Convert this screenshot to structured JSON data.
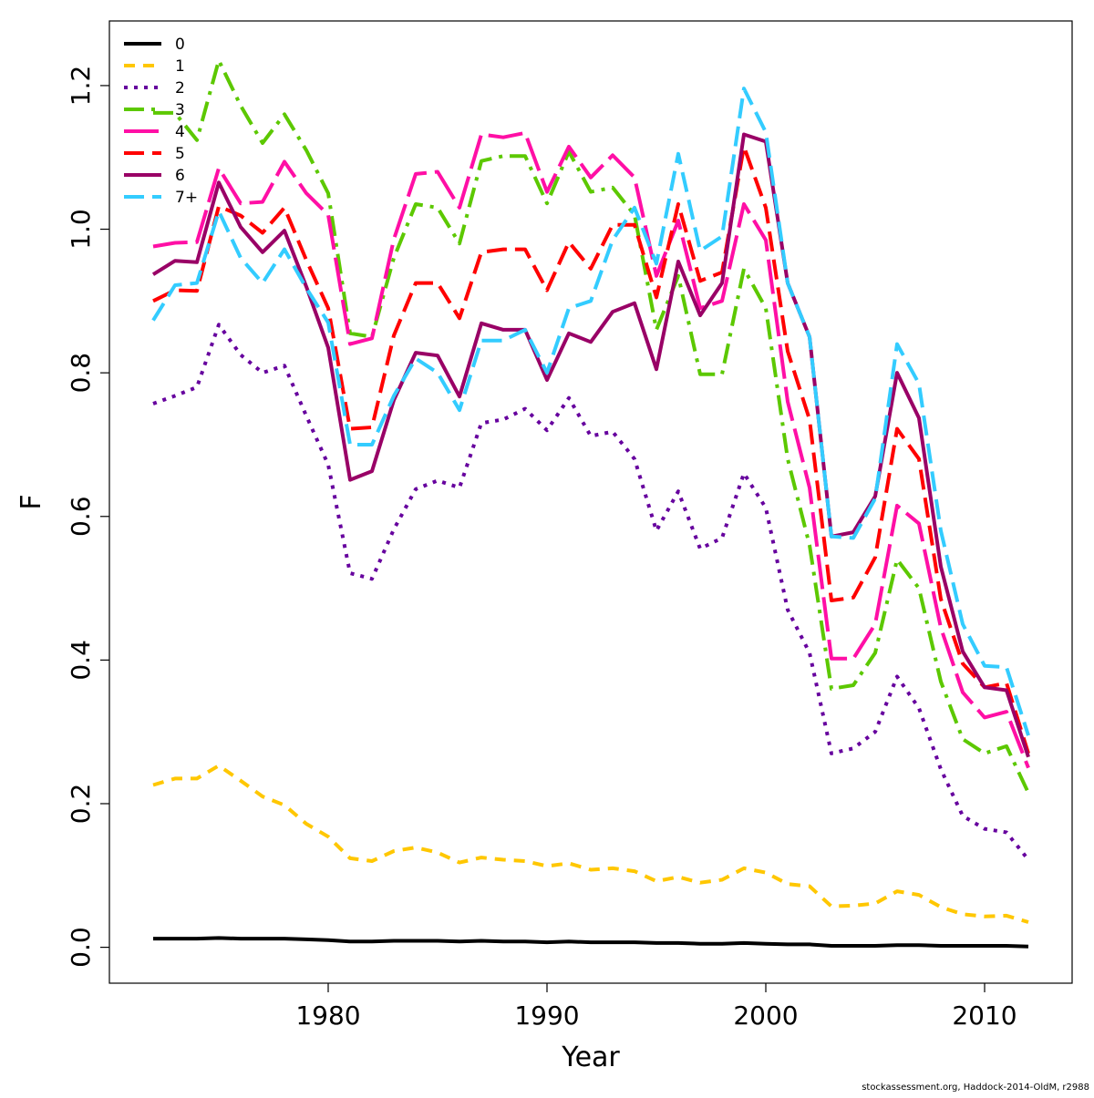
{
  "chart_data": {
    "type": "line",
    "title": "",
    "xlabel": "Year",
    "ylabel": "F",
    "xlim": [
      1970,
      2014
    ],
    "ylim": [
      -0.05,
      1.29
    ],
    "x_ticks": [
      1980,
      1990,
      2000,
      2010
    ],
    "y_ticks": [
      0.0,
      0.2,
      0.4,
      0.6,
      0.8,
      1.0,
      1.2
    ],
    "y_tick_labels": [
      "0.0",
      "0.2",
      "0.4",
      "0.6",
      "0.8",
      "1.0",
      "1.2"
    ],
    "legend_position": "top-left",
    "grid": false,
    "x": [
      1972,
      1973,
      1974,
      1975,
      1976,
      1977,
      1978,
      1979,
      1980,
      1981,
      1982,
      1983,
      1984,
      1985,
      1986,
      1987,
      1988,
      1989,
      1990,
      1991,
      1992,
      1993,
      1994,
      1995,
      1996,
      1997,
      1998,
      1999,
      2000,
      2001,
      2002,
      2003,
      2004,
      2005,
      2006,
      2007,
      2008,
      2009,
      2010,
      2011,
      2012
    ],
    "series": [
      {
        "name": "0",
        "color": "#000000",
        "dash": "",
        "values": [
          0.012,
          0.012,
          0.012,
          0.013,
          0.012,
          0.012,
          0.012,
          0.011,
          0.01,
          0.008,
          0.008,
          0.009,
          0.009,
          0.009,
          0.008,
          0.009,
          0.008,
          0.008,
          0.007,
          0.008,
          0.007,
          0.007,
          0.007,
          0.006,
          0.006,
          0.005,
          0.005,
          0.006,
          0.005,
          0.004,
          0.004,
          0.002,
          0.002,
          0.002,
          0.003,
          0.003,
          0.002,
          0.002,
          0.002,
          0.002,
          0.001
        ]
      },
      {
        "name": "1",
        "color": "#FFC700",
        "dash": "12,9",
        "values": [
          0.226,
          0.235,
          0.235,
          0.253,
          0.232,
          0.21,
          0.198,
          0.172,
          0.154,
          0.124,
          0.12,
          0.134,
          0.139,
          0.132,
          0.118,
          0.125,
          0.122,
          0.12,
          0.113,
          0.117,
          0.108,
          0.11,
          0.106,
          0.092,
          0.098,
          0.09,
          0.094,
          0.11,
          0.104,
          0.088,
          0.085,
          0.057,
          0.058,
          0.061,
          0.078,
          0.073,
          0.056,
          0.046,
          0.043,
          0.044,
          0.035
        ]
      },
      {
        "name": "2",
        "color": "#66009E",
        "dash": "4,7",
        "values": [
          0.757,
          0.768,
          0.78,
          0.867,
          0.825,
          0.8,
          0.81,
          0.74,
          0.672,
          0.521,
          0.513,
          0.582,
          0.638,
          0.65,
          0.64,
          0.73,
          0.735,
          0.75,
          0.72,
          0.765,
          0.712,
          0.718,
          0.68,
          0.58,
          0.635,
          0.555,
          0.57,
          0.66,
          0.612,
          0.47,
          0.41,
          0.27,
          0.277,
          0.3,
          0.377,
          0.333,
          0.248,
          0.183,
          0.165,
          0.16,
          0.122
        ]
      },
      {
        "name": "3",
        "color": "#5CC800",
        "dash": "22,8,4,8",
        "values": [
          1.162,
          1.162,
          1.124,
          1.235,
          1.172,
          1.12,
          1.16,
          1.11,
          1.05,
          0.855,
          0.85,
          0.96,
          1.035,
          1.03,
          0.98,
          1.095,
          1.102,
          1.102,
          1.036,
          1.108,
          1.052,
          1.058,
          1.02,
          0.86,
          0.935,
          0.798,
          0.798,
          0.945,
          0.89,
          0.68,
          0.56,
          0.36,
          0.365,
          0.41,
          0.54,
          0.5,
          0.37,
          0.29,
          0.27,
          0.28,
          0.215
        ]
      },
      {
        "name": "4",
        "color": "#FF0FA5",
        "dash": "38,9",
        "values": [
          0.976,
          0.981,
          0.982,
          1.085,
          1.036,
          1.038,
          1.094,
          1.05,
          1.02,
          0.84,
          0.848,
          0.986,
          1.077,
          1.08,
          1.03,
          1.132,
          1.128,
          1.134,
          1.052,
          1.115,
          1.072,
          1.103,
          1.072,
          0.935,
          1.012,
          0.89,
          0.9,
          1.035,
          0.985,
          0.76,
          0.64,
          0.402,
          0.402,
          0.45,
          0.615,
          0.59,
          0.445,
          0.355,
          0.32,
          0.328,
          0.25
        ]
      },
      {
        "name": "5",
        "color": "#FF0000",
        "dash": "22,9",
        "values": [
          0.9,
          0.915,
          0.914,
          1.032,
          1.019,
          0.995,
          1.03,
          0.957,
          0.89,
          0.722,
          0.724,
          0.852,
          0.925,
          0.925,
          0.876,
          0.968,
          0.972,
          0.972,
          0.915,
          0.982,
          0.945,
          1.006,
          1.006,
          0.905,
          1.035,
          0.928,
          0.94,
          1.115,
          1.03,
          0.83,
          0.735,
          0.483,
          0.487,
          0.543,
          0.722,
          0.68,
          0.485,
          0.395,
          0.362,
          0.368,
          0.27
        ]
      },
      {
        "name": "6",
        "color": "#990066",
        "dash": "",
        "values": [
          0.937,
          0.956,
          0.954,
          1.065,
          1.003,
          0.968,
          0.998,
          0.92,
          0.835,
          0.651,
          0.663,
          0.762,
          0.828,
          0.824,
          0.767,
          0.869,
          0.86,
          0.86,
          0.79,
          0.855,
          0.843,
          0.885,
          0.897,
          0.805,
          0.955,
          0.88,
          0.925,
          1.132,
          1.122,
          0.925,
          0.85,
          0.572,
          0.578,
          0.628,
          0.8,
          0.737,
          0.53,
          0.412,
          0.362,
          0.358,
          0.265
        ]
      },
      {
        "name": "7+",
        "color": "#33CCFF",
        "dash": "22,9",
        "values": [
          0.873,
          0.922,
          0.925,
          1.025,
          0.96,
          0.925,
          0.972,
          0.918,
          0.87,
          0.7,
          0.7,
          0.768,
          0.82,
          0.8,
          0.748,
          0.845,
          0.845,
          0.86,
          0.8,
          0.89,
          0.9,
          0.985,
          1.03,
          0.952,
          1.105,
          0.97,
          0.99,
          1.196,
          1.135,
          0.925,
          0.85,
          0.572,
          0.57,
          0.625,
          0.84,
          0.785,
          0.58,
          0.45,
          0.392,
          0.39,
          0.295
        ]
      }
    ]
  },
  "footer": {
    "credit": "stockassessment.org, Haddock-2014-OldM, r2988"
  }
}
